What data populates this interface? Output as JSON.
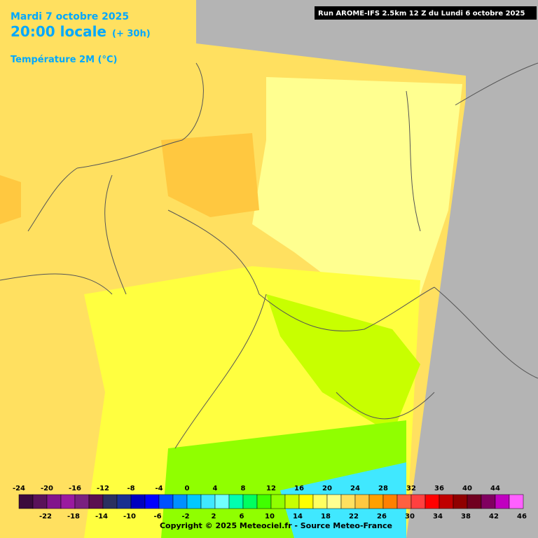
{
  "header": {
    "date": "Mardi 7 octobre 2025",
    "time": "20:00 locale",
    "lead": "(+ 30h)",
    "parameter": "Température 2M (°C)",
    "run": "Run AROME-IFS 2.5km 12 Z du Lundi 6 octobre 2025"
  },
  "legend": {
    "ticks": [
      -24,
      -22,
      -20,
      -18,
      -16,
      -14,
      -12,
      -10,
      -8,
      -6,
      -4,
      -2,
      0,
      2,
      4,
      6,
      8,
      10,
      12,
      14,
      16,
      18,
      20,
      22,
      24,
      26,
      28,
      30,
      32,
      34,
      36,
      38,
      40,
      42,
      44,
      46
    ],
    "colors": [
      "#3c0a3c",
      "#5a125a",
      "#82148c",
      "#9a1aa0",
      "#7a2080",
      "#5a1050",
      "#2a3060",
      "#1a3090",
      "#0000c0",
      "#0000ff",
      "#0050ff",
      "#0090ff",
      "#00c8ff",
      "#40e8ff",
      "#70ffff",
      "#00ffb0",
      "#00ff60",
      "#40ff00",
      "#90ff00",
      "#c8ff00",
      "#ffff00",
      "#ffff60",
      "#ffff90",
      "#ffe060",
      "#ffc840",
      "#ffa000",
      "#ff8000",
      "#ff6040",
      "#ff4040",
      "#ff0000",
      "#c00000",
      "#900000",
      "#700020",
      "#800060",
      "#c000c0",
      "#ff60ff"
    ]
  },
  "footer": "Copyright © 2025 Meteociel.fr - Source Meteo-France"
}
